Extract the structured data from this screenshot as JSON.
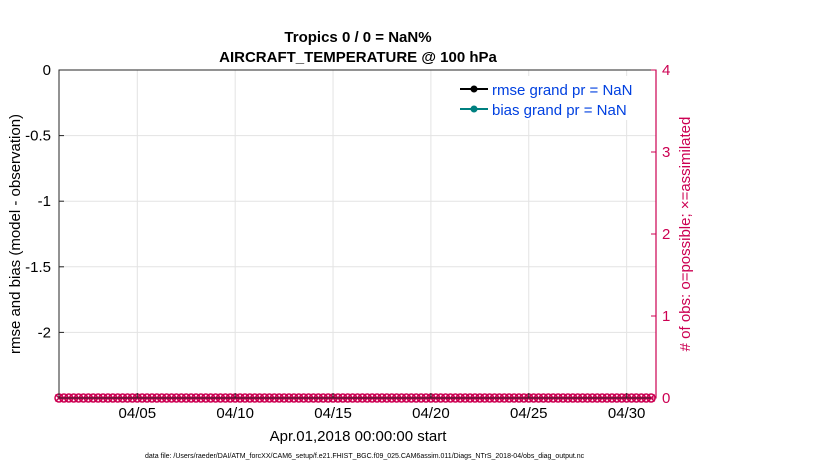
{
  "chart_data": {
    "type": "line",
    "title": "Tropics 0 / 0 = NaN%",
    "subtitle": "AIRCRAFT_TEMPERATURE @ 100 hPa",
    "ylabel": "rmse and bias (model - observation)",
    "y2label": "# of obs: o=possible; ×=assimilated",
    "xlabel": "Apr.01,2018 00:00:00 start",
    "footer": "data file: /Users/raeder/DAI/ATM_forcXX/CAM6_setup/f.e21.FHIST_BGC.f09_025.CAM6assim.011/Diags_NTrS_2018-04/obs_diag_output.nc",
    "ylim": [
      -2.5,
      0
    ],
    "y2lim": [
      0,
      4
    ],
    "xlim": [
      1,
      31.5
    ],
    "yticks": [
      0,
      -0.5,
      -1,
      -1.5,
      -2
    ],
    "ytick_labels": [
      "0",
      "-0.5",
      "-1",
      "-1.5",
      "-2"
    ],
    "y2ticks": [
      0,
      1,
      2,
      3,
      4
    ],
    "y2tick_labels": [
      "0",
      "1",
      "2",
      "3",
      "4"
    ],
    "xticks": [
      5,
      10,
      15,
      20,
      25,
      30
    ],
    "xtick_labels": [
      "04/05",
      "04/10",
      "04/15",
      "04/20",
      "04/25",
      "04/30"
    ],
    "grid": true,
    "legend_position": "top-right",
    "series": [
      {
        "name": "rmse grand pr = NaN",
        "color": "#000000",
        "axis": "left",
        "values": []
      },
      {
        "name": "bias grand pr = NaN",
        "color": "#008080",
        "axis": "left",
        "values": []
      },
      {
        "name": "obs possible",
        "color": "#cc0052",
        "axis": "right",
        "marker": "o",
        "x_start": 1,
        "x_step": 0.25,
        "count": 122,
        "value": 0
      },
      {
        "name": "obs assimilated",
        "color": "#cc0052",
        "axis": "right",
        "marker": "x",
        "x_start": 1,
        "x_step": 0.25,
        "count": 122,
        "value": 0
      }
    ]
  }
}
